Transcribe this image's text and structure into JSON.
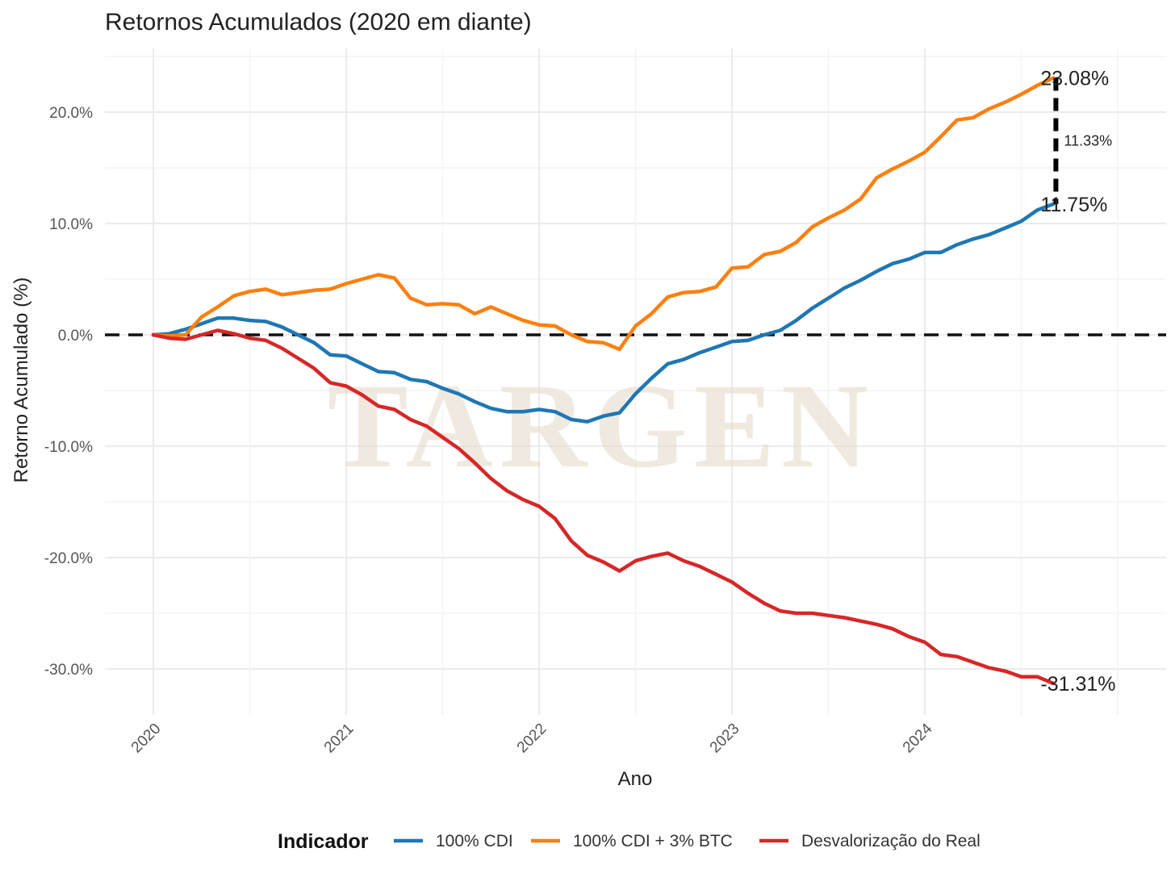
{
  "chart_data": {
    "type": "line",
    "title": "Retornos Acumulados (2020 em diante)",
    "xlabel": "Ano",
    "ylabel": "Retorno Acumulado (%)",
    "x_ticks": [
      2020,
      2021,
      2022,
      2023,
      2024
    ],
    "x_tick_labels": [
      "2020",
      "2021",
      "2022",
      "2023",
      "2024"
    ],
    "xlim": [
      2019.75,
      2025.25
    ],
    "y_ticks": [
      20,
      10,
      0,
      -10,
      -20,
      -30
    ],
    "y_tick_labels": [
      "20.0%",
      "10.0%",
      "0.0%",
      "-10.0%",
      "-20.0%",
      "-30.0%"
    ],
    "ylim": [
      -34,
      25.5
    ],
    "grid": true,
    "reference_line": 0,
    "legend_title": "Indicador",
    "legend_position": "bottom",
    "watermark": "TARGEN",
    "series": [
      {
        "name": "100% CDI",
        "color": "#1f77b4",
        "end_label": "11.75%",
        "x": [
          2020.0,
          2020.083,
          2020.167,
          2020.25,
          2020.333,
          2020.417,
          2020.5,
          2020.583,
          2020.667,
          2020.75,
          2020.833,
          2020.917,
          2021.0,
          2021.083,
          2021.167,
          2021.25,
          2021.333,
          2021.417,
          2021.5,
          2021.583,
          2021.667,
          2021.75,
          2021.833,
          2021.917,
          2022.0,
          2022.083,
          2022.167,
          2022.25,
          2022.333,
          2022.417,
          2022.5,
          2022.583,
          2022.667,
          2022.75,
          2022.833,
          2022.917,
          2023.0,
          2023.083,
          2023.167,
          2023.25,
          2023.333,
          2023.417,
          2023.5,
          2023.583,
          2023.667,
          2023.75,
          2023.833,
          2023.917,
          2024.0,
          2024.083,
          2024.167,
          2024.25,
          2024.333,
          2024.417,
          2024.5,
          2024.583,
          2024.667
        ],
        "y": [
          0,
          0.1,
          0.5,
          1.0,
          1.5,
          1.5,
          1.3,
          1.2,
          0.7,
          0,
          -0.7,
          -1.8,
          -1.9,
          -2.6,
          -3.3,
          -3.4,
          -4.0,
          -4.2,
          -4.8,
          -5.3,
          -6.0,
          -6.6,
          -6.9,
          -6.9,
          -6.7,
          -6.9,
          -7.6,
          -7.8,
          -7.3,
          -7.0,
          -5.3,
          -3.9,
          -2.6,
          -2.2,
          -1.6,
          -1.1,
          -0.6,
          -0.5,
          0,
          0.4,
          1.3,
          2.4,
          3.3,
          4.2,
          4.9,
          5.7,
          6.4,
          6.8,
          7.4,
          7.4,
          8.1,
          8.6,
          9.0,
          9.6,
          10.2,
          11.2,
          11.75
        ]
      },
      {
        "name": "100% CDI + 3% BTC",
        "color": "#ff7f0e",
        "end_label": "23.08%",
        "x": [
          2020.0,
          2020.083,
          2020.167,
          2020.25,
          2020.333,
          2020.417,
          2020.5,
          2020.583,
          2020.667,
          2020.75,
          2020.833,
          2020.917,
          2021.0,
          2021.083,
          2021.167,
          2021.25,
          2021.333,
          2021.417,
          2021.5,
          2021.583,
          2021.667,
          2021.75,
          2021.833,
          2021.917,
          2022.0,
          2022.083,
          2022.167,
          2022.25,
          2022.333,
          2022.417,
          2022.5,
          2022.583,
          2022.667,
          2022.75,
          2022.833,
          2022.917,
          2023.0,
          2023.083,
          2023.167,
          2023.25,
          2023.333,
          2023.417,
          2023.5,
          2023.583,
          2023.667,
          2023.75,
          2023.833,
          2023.917,
          2024.0,
          2024.083,
          2024.167,
          2024.25,
          2024.333,
          2024.417,
          2024.5,
          2024.583,
          2024.667
        ],
        "y": [
          0,
          -0.1,
          0,
          1.6,
          2.5,
          3.5,
          3.9,
          4.1,
          3.6,
          3.8,
          4.0,
          4.1,
          4.6,
          5.0,
          5.4,
          5.1,
          3.3,
          2.7,
          2.8,
          2.7,
          1.9,
          2.5,
          1.9,
          1.3,
          0.9,
          0.8,
          0,
          -0.6,
          -0.7,
          -1.3,
          0.8,
          1.9,
          3.4,
          3.8,
          3.9,
          4.3,
          6.0,
          6.1,
          7.2,
          7.5,
          8.3,
          9.7,
          10.5,
          11.2,
          12.2,
          14.1,
          14.9,
          15.6,
          16.4,
          17.8,
          19.3,
          19.5,
          20.3,
          20.9,
          21.6,
          22.4,
          23.08
        ]
      },
      {
        "name": "Desvalorização do Real",
        "color": "#d62728",
        "end_label": "-31.31%",
        "x": [
          2020.0,
          2020.083,
          2020.167,
          2020.25,
          2020.333,
          2020.417,
          2020.5,
          2020.583,
          2020.667,
          2020.75,
          2020.833,
          2020.917,
          2021.0,
          2021.083,
          2021.167,
          2021.25,
          2021.333,
          2021.417,
          2021.5,
          2021.583,
          2021.667,
          2021.75,
          2021.833,
          2021.917,
          2022.0,
          2022.083,
          2022.167,
          2022.25,
          2022.333,
          2022.417,
          2022.5,
          2022.583,
          2022.667,
          2022.75,
          2022.833,
          2022.917,
          2023.0,
          2023.083,
          2023.167,
          2023.25,
          2023.333,
          2023.417,
          2023.5,
          2023.583,
          2023.667,
          2023.75,
          2023.833,
          2023.917,
          2024.0,
          2024.083,
          2024.167,
          2024.25,
          2024.333,
          2024.417,
          2024.5,
          2024.583,
          2024.667
        ],
        "y": [
          0,
          -0.3,
          -0.4,
          0,
          0.4,
          0.1,
          -0.3,
          -0.5,
          -1.2,
          -2.1,
          -3.0,
          -4.3,
          -4.6,
          -5.4,
          -6.4,
          -6.7,
          -7.6,
          -8.2,
          -9.2,
          -10.2,
          -11.5,
          -12.9,
          -14.0,
          -14.8,
          -15.4,
          -16.5,
          -18.5,
          -19.8,
          -20.4,
          -21.2,
          -20.3,
          -19.9,
          -19.6,
          -20.3,
          -20.8,
          -21.5,
          -22.2,
          -23.2,
          -24.1,
          -24.8,
          -25.0,
          -25.0,
          -25.2,
          -25.4,
          -25.7,
          -26.0,
          -26.4,
          -27.1,
          -27.6,
          -28.7,
          -28.9,
          -29.4,
          -29.9,
          -30.2,
          -30.7,
          -30.7,
          -31.31
        ]
      }
    ],
    "difference_annotation": {
      "label": "11.33%",
      "x": 2024.667,
      "y_from": 23.08,
      "y_to": 11.75
    }
  }
}
